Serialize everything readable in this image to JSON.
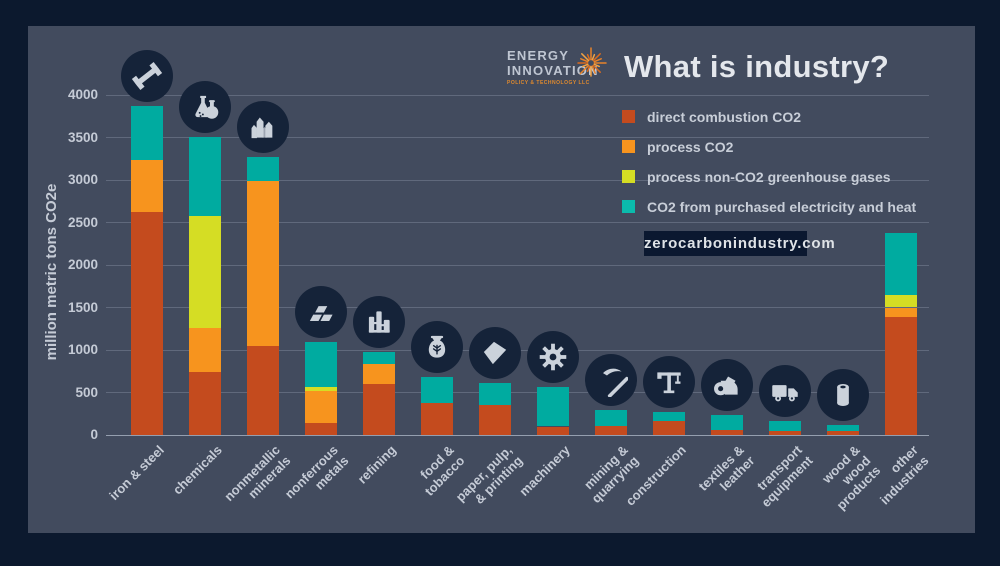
{
  "header": {
    "logo": {
      "line1": "ENERGY",
      "line2": "INNOVATION",
      "subline": "POLICY & TECHNOLOGY LLC",
      "sunburst_icon": "sunburst-icon",
      "sunburst_colors": [
        "#E8832A",
        "#F2A243",
        "#D96B1F"
      ]
    },
    "title": "What is industry?"
  },
  "legend": {
    "items": [
      {
        "label": "direct combustion CO2",
        "color": "#C44B1E"
      },
      {
        "label": "process CO2",
        "color": "#F7941E"
      },
      {
        "label": "process non-CO2 greenhouse gases",
        "color": "#D5DD24"
      },
      {
        "label": "CO2 from purchased electricity and heat",
        "color": "#0BBBAC"
      }
    ]
  },
  "website_badge": {
    "text": "zerocarbonindustry.com"
  },
  "chart_data": {
    "type": "bar",
    "stacked": true,
    "title": "What is industry?",
    "ylabel": "million metric tons CO2e",
    "xlabel": "",
    "ylim": [
      0,
      4000
    ],
    "yticks": [
      0,
      500,
      1000,
      1500,
      2000,
      2500,
      3000,
      3500,
      4000
    ],
    "grid": true,
    "legend_position": "top-right",
    "categories": [
      "iron & steel",
      "chemicals",
      "nonmetallic minerals",
      "nonferrous metals",
      "refining",
      "food & tobacco",
      "paper, pulp, & printing",
      "machinery",
      "mining & quarrying",
      "construction",
      "textiles & leather",
      "transport equipment",
      "wood & wood products",
      "other industries"
    ],
    "category_label_lines": [
      [
        "iron & steel"
      ],
      [
        "chemicals"
      ],
      [
        "nonmetallic",
        "minerals"
      ],
      [
        "nonferrous",
        "metals"
      ],
      [
        "refining"
      ],
      [
        "food &",
        "tobacco"
      ],
      [
        "paper, pulp,",
        "& printing"
      ],
      [
        "machinery"
      ],
      [
        "mining &",
        "quarrying"
      ],
      [
        "construction"
      ],
      [
        "textiles &",
        "leather"
      ],
      [
        "transport",
        "equipment"
      ],
      [
        "wood &",
        "wood",
        "products"
      ],
      [
        "other",
        "industries"
      ]
    ],
    "icons": [
      "steel-beam",
      "chemical-flasks",
      "crystals",
      "metal-ingots",
      "refinery",
      "grain-sack",
      "paper-stack",
      "gear",
      "pickaxe",
      "crane",
      "fabric-rolls",
      "truck",
      "log-roll",
      null
    ],
    "series": [
      {
        "name": "direct combustion CO2",
        "color": "#C44B1E",
        "values": [
          2625,
          740,
          1050,
          145,
          595,
          380,
          355,
          100,
          105,
          170,
          55,
          50,
          50,
          1385
        ]
      },
      {
        "name": "process CO2",
        "color": "#F7941E",
        "values": [
          610,
          520,
          1940,
          370,
          240,
          0,
          0,
          0,
          0,
          0,
          0,
          0,
          0,
          115
        ]
      },
      {
        "name": "process non-CO2 greenhouse gases",
        "color": "#D5DD24",
        "values": [
          0,
          1320,
          0,
          50,
          0,
          0,
          0,
          0,
          0,
          0,
          0,
          0,
          0,
          145
        ]
      },
      {
        "name": "CO2 from purchased electricity and heat",
        "color": "#00ABA0",
        "values": [
          640,
          930,
          285,
          530,
          145,
          305,
          260,
          470,
          195,
          95,
          180,
          120,
          70,
          730
        ]
      }
    ],
    "totals": [
      3875,
      3510,
      3275,
      1095,
      980,
      685,
      615,
      570,
      300,
      265,
      235,
      170,
      120,
      2375
    ]
  },
  "colors": {
    "background": "#0C192E",
    "panel": "#424B5E",
    "icon_circle": "#152339",
    "axis_text": "#C5CBD6",
    "title_text": "#E4E7EC",
    "badge_background": "#0B1830"
  }
}
